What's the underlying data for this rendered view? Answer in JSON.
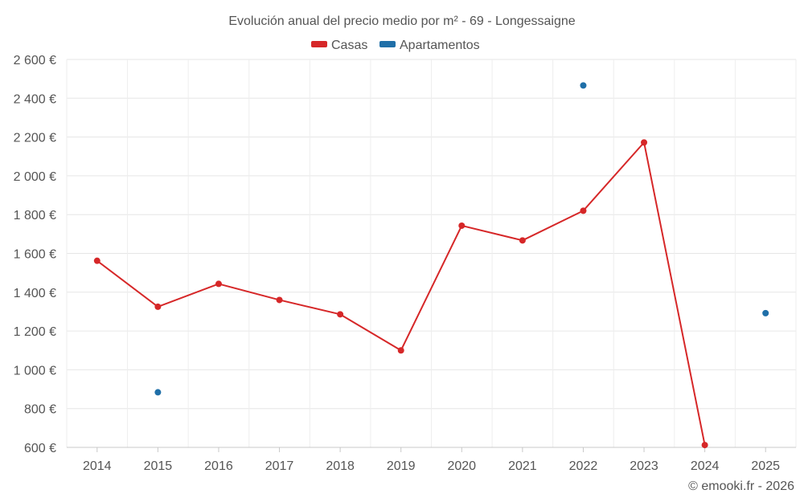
{
  "chart_data": {
    "type": "line",
    "title": "Evolución anual del precio medio por m² - 69 - Longessaigne",
    "categories": [
      "2014",
      "2015",
      "2016",
      "2017",
      "2018",
      "2019",
      "2020",
      "2021",
      "2022",
      "2023",
      "2024",
      "2025"
    ],
    "ylim": [
      600,
      2600
    ],
    "yticks": [
      600,
      800,
      1000,
      1200,
      1400,
      1600,
      1800,
      2000,
      2200,
      2400,
      2600
    ],
    "ytick_labels": [
      "600 €",
      "800 €",
      "1 000 €",
      "1 200 €",
      "1 400 €",
      "1 600 €",
      "1 800 €",
      "2 000 €",
      "2 200 €",
      "2 400 €",
      "2 600 €"
    ],
    "series": [
      {
        "name": "Casas",
        "color": "#d62728",
        "line": true,
        "values": [
          1562,
          1325,
          1443,
          1360,
          1286,
          1100,
          1743,
          1667,
          1820,
          2172,
          612,
          null
        ]
      },
      {
        "name": "Apartamentos",
        "color": "#1f6fa8",
        "line": false,
        "values": [
          null,
          884,
          null,
          null,
          null,
          null,
          null,
          null,
          2466,
          null,
          null,
          1292
        ]
      }
    ],
    "grid": true,
    "legend_position": "top-center",
    "credit": "© emooki.fr - 2026"
  }
}
